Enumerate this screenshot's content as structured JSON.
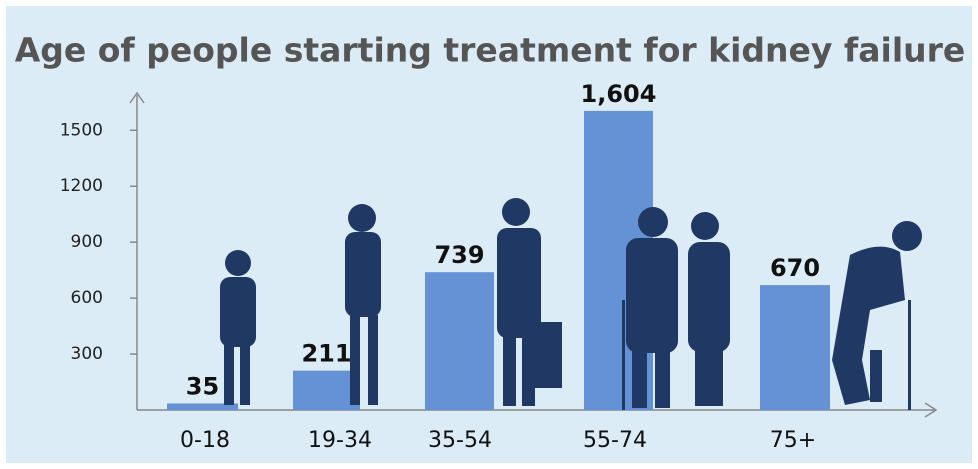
{
  "chart_data": {
    "type": "bar",
    "title": "Age of people starting treatment for kidney failure",
    "categories": [
      "0-18",
      "19-34",
      "35-54",
      "55-74",
      "75+"
    ],
    "values": [
      35,
      211,
      739,
      1604,
      670
    ],
    "value_labels": [
      "35",
      "211",
      "739",
      "1,604",
      "670"
    ],
    "color": "#6592d4",
    "ylim": [
      0,
      1700
    ],
    "yticks": [
      300,
      600,
      900,
      1200,
      1500
    ]
  }
}
